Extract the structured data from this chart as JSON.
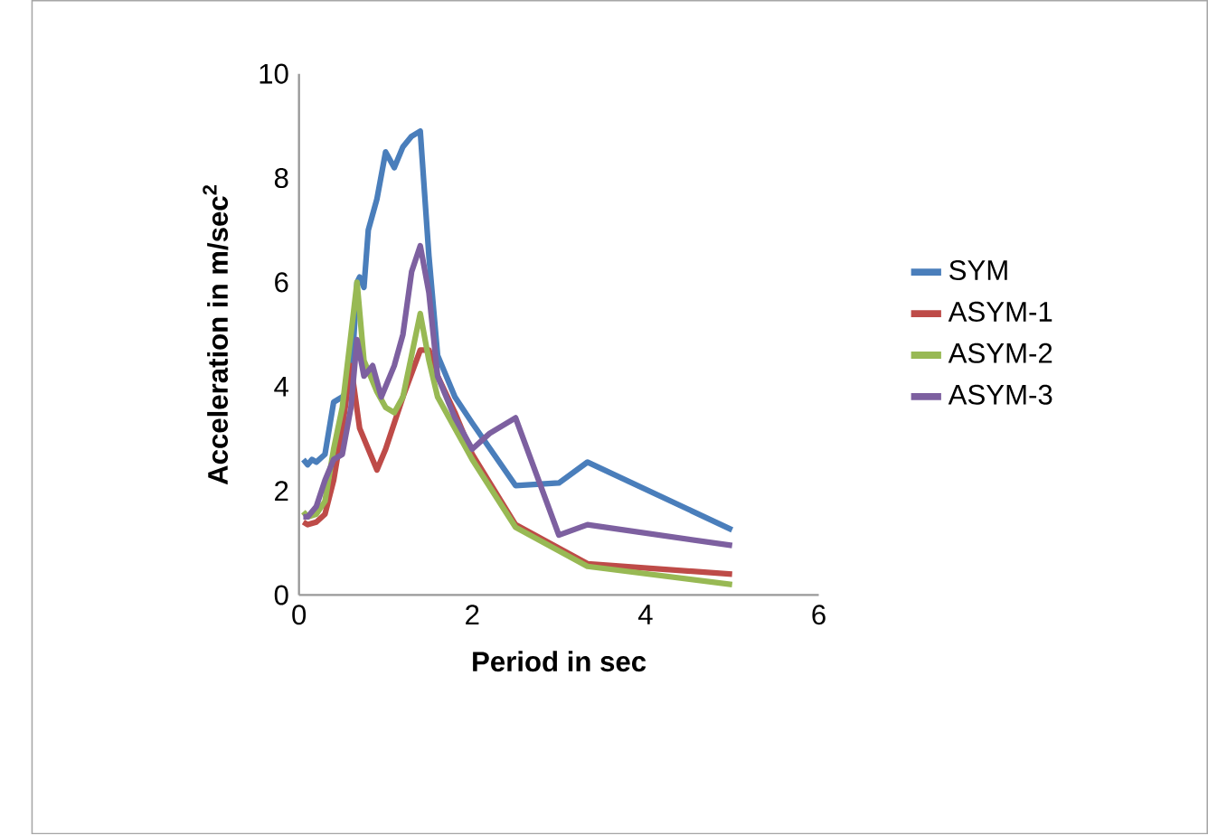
{
  "chart_data": {
    "type": "line",
    "xlabel": "Period in sec",
    "ylabel": "Acceleration in m/sec$^{2}$",
    "xlim": [
      0,
      6
    ],
    "ylim": [
      0,
      10
    ],
    "xticks": [
      0,
      2,
      4,
      6
    ],
    "yticks": [
      0,
      2,
      4,
      6,
      8,
      10
    ],
    "grid": false,
    "legend": "right",
    "marker": "none",
    "line_style": "solid",
    "series": [
      {
        "name": "SYM",
        "color": "#4a7ebb",
        "x": [
          0.05,
          0.1,
          0.15,
          0.2,
          0.3,
          0.4,
          0.5,
          0.6,
          0.67,
          0.7,
          0.75,
          0.8,
          0.9,
          1.0,
          1.1,
          1.2,
          1.3,
          1.4,
          1.5,
          1.6,
          1.8,
          2.0,
          2.5,
          3.0,
          3.33,
          5.0
        ],
        "values": [
          2.6,
          2.5,
          2.6,
          2.55,
          2.7,
          3.7,
          3.8,
          4.0,
          6.0,
          6.1,
          5.9,
          7.0,
          7.6,
          8.5,
          8.2,
          8.6,
          8.8,
          8.9,
          6.5,
          4.6,
          3.8,
          3.3,
          2.1,
          2.15,
          2.55,
          1.25
        ]
      },
      {
        "name": "ASYM-1",
        "color": "#be4b48",
        "x": [
          0.05,
          0.1,
          0.2,
          0.3,
          0.4,
          0.5,
          0.6,
          0.7,
          0.8,
          0.9,
          1.0,
          1.2,
          1.4,
          1.5,
          1.6,
          1.8,
          2.0,
          2.5,
          3.33,
          5.0
        ],
        "values": [
          1.4,
          1.35,
          1.4,
          1.55,
          2.2,
          3.2,
          4.4,
          3.2,
          2.8,
          2.4,
          2.8,
          3.8,
          4.7,
          4.7,
          4.2,
          3.5,
          2.7,
          1.35,
          0.6,
          0.4
        ]
      },
      {
        "name": "ASYM-2",
        "color": "#98b954",
        "x": [
          0.05,
          0.1,
          0.2,
          0.3,
          0.4,
          0.5,
          0.6,
          0.67,
          0.75,
          0.9,
          1.0,
          1.1,
          1.2,
          1.3,
          1.4,
          1.5,
          1.6,
          1.8,
          2.0,
          2.5,
          3.33,
          5.0
        ],
        "values": [
          1.6,
          1.5,
          1.55,
          1.8,
          2.8,
          3.6,
          5.0,
          6.0,
          4.5,
          3.9,
          3.6,
          3.5,
          3.8,
          4.6,
          5.4,
          4.5,
          3.8,
          3.2,
          2.6,
          1.3,
          0.55,
          0.2
        ]
      },
      {
        "name": "ASYM-3",
        "color": "#7d60a0",
        "x": [
          0.05,
          0.1,
          0.2,
          0.3,
          0.4,
          0.5,
          0.6,
          0.67,
          0.75,
          0.85,
          0.95,
          1.0,
          1.1,
          1.2,
          1.3,
          1.4,
          1.5,
          1.6,
          1.8,
          2.0,
          2.2,
          2.5,
          3.0,
          3.33,
          5.0
        ],
        "values": [
          1.5,
          1.5,
          1.7,
          2.2,
          2.6,
          2.7,
          3.6,
          4.9,
          4.2,
          4.4,
          3.8,
          4.0,
          4.4,
          5.0,
          6.2,
          6.7,
          5.8,
          4.2,
          3.4,
          2.8,
          3.1,
          3.4,
          1.15,
          1.35,
          0.95
        ]
      }
    ]
  }
}
